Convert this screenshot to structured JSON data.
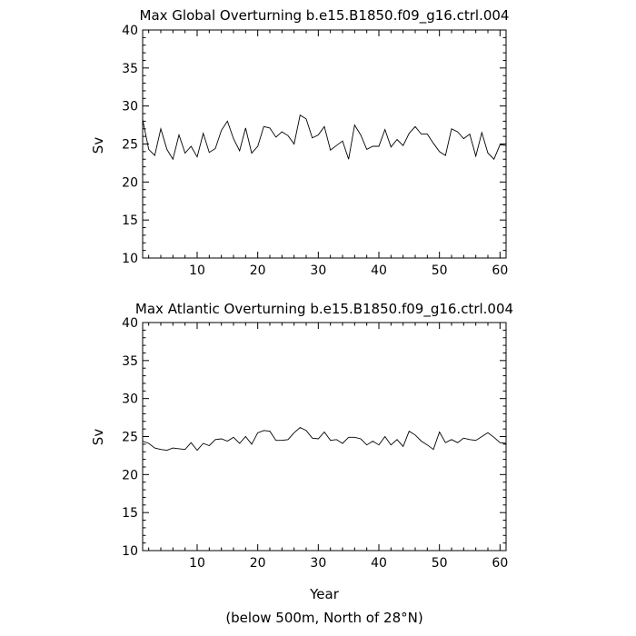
{
  "footer_note": "(below 500m, North of 28°N)",
  "chart_data": [
    {
      "type": "line",
      "title": "Max Global Overturning b.e15.B1850.f09_g16.ctrl.004",
      "xlabel": "",
      "ylabel": "Sv",
      "xlim": [
        1,
        61
      ],
      "ylim": [
        10,
        40
      ],
      "x_ticks": [
        10,
        20,
        30,
        40,
        50,
        60
      ],
      "y_ticks": [
        10,
        15,
        20,
        25,
        30,
        35,
        40
      ],
      "grid": false,
      "series": [
        {
          "x": [
            1,
            2,
            3,
            4,
            5,
            6,
            7,
            8,
            9,
            10,
            11,
            12,
            13,
            14,
            15,
            16,
            17,
            18,
            19,
            20,
            21,
            22,
            23,
            24,
            25,
            26,
            27,
            28,
            29,
            30,
            31,
            32,
            33,
            34,
            35,
            36,
            37,
            38,
            39,
            40,
            41,
            42,
            43,
            44,
            45,
            46,
            47,
            48,
            49,
            50,
            51,
            52,
            53,
            54,
            55,
            56,
            57,
            58,
            59,
            60,
            61
          ],
          "values": [
            28.2,
            24.3,
            23.5,
            27.0,
            24.3,
            23.0,
            26.2,
            23.8,
            24.7,
            23.3,
            26.4,
            23.9,
            24.4,
            26.8,
            28.0,
            25.7,
            24.1,
            27.1,
            23.8,
            24.7,
            27.3,
            27.1,
            25.9,
            26.6,
            26.1,
            25.0,
            28.8,
            28.3,
            25.8,
            26.2,
            27.3,
            24.2,
            24.8,
            25.4,
            23.0,
            27.5,
            26.2,
            24.3,
            24.7,
            24.7,
            26.9,
            24.6,
            25.6,
            24.8,
            26.4,
            27.3,
            26.3,
            26.3,
            25.1,
            24.0,
            23.5,
            27.0,
            26.6,
            25.7,
            26.3,
            23.4,
            26.5,
            23.8,
            23.0,
            24.9,
            24.8
          ]
        }
      ]
    },
    {
      "type": "line",
      "title": "Max Atlantic Overturning b.e15.B1850.f09_g16.ctrl.004",
      "xlabel": "Year",
      "ylabel": "Sv",
      "xlim": [
        1,
        61
      ],
      "ylim": [
        10,
        40
      ],
      "x_ticks": [
        10,
        20,
        30,
        40,
        50,
        60
      ],
      "y_ticks": [
        10,
        15,
        20,
        25,
        30,
        35,
        40
      ],
      "grid": false,
      "series": [
        {
          "x": [
            1,
            2,
            3,
            4,
            5,
            6,
            7,
            8,
            9,
            10,
            11,
            12,
            13,
            14,
            15,
            16,
            17,
            18,
            19,
            20,
            21,
            22,
            23,
            24,
            25,
            26,
            27,
            28,
            29,
            30,
            31,
            32,
            33,
            34,
            35,
            36,
            37,
            38,
            39,
            40,
            41,
            42,
            43,
            44,
            45,
            46,
            47,
            48,
            49,
            50,
            51,
            52,
            53,
            54,
            55,
            56,
            57,
            58,
            59,
            60,
            61
          ],
          "values": [
            24.4,
            24.1,
            23.5,
            23.3,
            23.2,
            23.5,
            23.4,
            23.3,
            24.2,
            23.2,
            24.1,
            23.8,
            24.6,
            24.7,
            24.4,
            24.9,
            24.1,
            25.0,
            24.0,
            25.5,
            25.8,
            25.7,
            24.5,
            24.5,
            24.6,
            25.5,
            26.2,
            25.8,
            24.8,
            24.7,
            25.6,
            24.5,
            24.6,
            24.1,
            24.9,
            24.9,
            24.7,
            23.9,
            24.4,
            23.9,
            25.0,
            23.9,
            24.6,
            23.7,
            25.7,
            25.2,
            24.4,
            23.9,
            23.3,
            25.6,
            24.2,
            24.6,
            24.2,
            24.8,
            24.6,
            24.5,
            25.0,
            25.5,
            24.9,
            24.2,
            24.1
          ]
        }
      ]
    }
  ]
}
